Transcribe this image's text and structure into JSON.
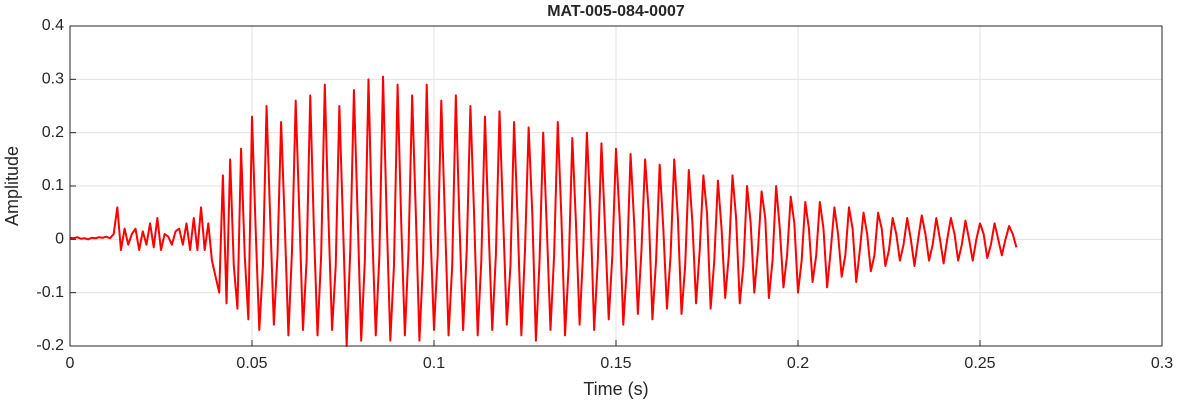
{
  "chart_data": {
    "type": "line",
    "title": "MAT-005-084-0007",
    "xlabel": "Time (s)",
    "ylabel": "Amplitude",
    "xlim": [
      0,
      0.3
    ],
    "xticks": [
      0,
      0.05,
      0.1,
      0.15,
      0.2,
      0.25,
      0.3
    ],
    "ylim": [
      -0.2,
      0.4
    ],
    "yticks": [
      -0.2,
      -0.1,
      0,
      0.1,
      0.2,
      0.3,
      0.4
    ],
    "grid": true,
    "x": [
      0,
      0.001,
      0.002,
      0.003,
      0.004,
      0.005,
      0.006,
      0.007,
      0.008,
      0.009,
      0.01,
      0.011,
      0.012,
      0.013,
      0.014,
      0.015,
      0.016,
      0.017,
      0.018,
      0.019,
      0.02,
      0.021,
      0.022,
      0.023,
      0.024,
      0.025,
      0.026,
      0.027,
      0.028,
      0.029,
      0.03,
      0.031,
      0.032,
      0.033,
      0.034,
      0.035,
      0.036,
      0.037,
      0.038,
      0.039,
      0.04,
      0.041,
      0.042,
      0.043,
      0.044,
      0.045,
      0.046,
      0.047,
      0.048,
      0.049,
      0.05,
      0.051,
      0.052,
      0.053,
      0.054,
      0.055,
      0.056,
      0.057,
      0.058,
      0.059,
      0.06,
      0.061,
      0.062,
      0.063,
      0.064,
      0.065,
      0.066,
      0.067,
      0.068,
      0.069,
      0.07,
      0.071,
      0.072,
      0.073,
      0.074,
      0.075,
      0.076,
      0.077,
      0.078,
      0.079,
      0.08,
      0.081,
      0.082,
      0.083,
      0.084,
      0.085,
      0.086,
      0.087,
      0.088,
      0.089,
      0.09,
      0.091,
      0.092,
      0.093,
      0.094,
      0.095,
      0.096,
      0.097,
      0.098,
      0.099,
      0.1,
      0.101,
      0.102,
      0.103,
      0.104,
      0.105,
      0.106,
      0.107,
      0.108,
      0.109,
      0.11,
      0.111,
      0.112,
      0.113,
      0.114,
      0.115,
      0.116,
      0.117,
      0.118,
      0.119,
      0.12,
      0.121,
      0.122,
      0.123,
      0.124,
      0.125,
      0.126,
      0.127,
      0.128,
      0.129,
      0.13,
      0.131,
      0.132,
      0.133,
      0.134,
      0.135,
      0.136,
      0.137,
      0.138,
      0.139,
      0.14,
      0.141,
      0.142,
      0.143,
      0.144,
      0.145,
      0.146,
      0.147,
      0.148,
      0.149,
      0.15,
      0.151,
      0.152,
      0.153,
      0.154,
      0.155,
      0.156,
      0.157,
      0.158,
      0.159,
      0.16,
      0.161,
      0.162,
      0.163,
      0.164,
      0.165,
      0.166,
      0.167,
      0.168,
      0.169,
      0.17,
      0.171,
      0.172,
      0.173,
      0.174,
      0.175,
      0.176,
      0.177,
      0.178,
      0.179,
      0.18,
      0.181,
      0.182,
      0.183,
      0.184,
      0.185,
      0.186,
      0.187,
      0.188,
      0.189,
      0.19,
      0.191,
      0.192,
      0.193,
      0.194,
      0.195,
      0.196,
      0.197,
      0.198,
      0.199,
      0.2,
      0.201,
      0.202,
      0.203,
      0.204,
      0.205,
      0.206,
      0.207,
      0.208,
      0.209,
      0.21,
      0.211,
      0.212,
      0.213,
      0.214,
      0.215,
      0.216,
      0.217,
      0.218,
      0.219,
      0.22,
      0.221,
      0.222,
      0.223,
      0.224,
      0.225,
      0.226,
      0.227,
      0.228,
      0.229,
      0.23,
      0.231,
      0.232,
      0.233,
      0.234,
      0.235,
      0.236,
      0.237,
      0.238,
      0.239,
      0.24,
      0.241,
      0.242,
      0.243,
      0.244,
      0.245,
      0.246,
      0.247,
      0.248,
      0.249,
      0.25,
      0.251,
      0.252,
      0.253,
      0.254,
      0.255,
      0.256,
      0.257,
      0.258,
      0.259,
      0.26
    ],
    "series": [
      {
        "color": "#ff0000",
        "values": [
          0.003,
          0.002,
          0.004,
          0.001,
          0.002,
          0,
          0.003,
          0.002,
          0.004,
          0.003,
          0.005,
          0.002,
          0.01,
          0.06,
          -0.02,
          0.02,
          -0.01,
          0.01,
          0.02,
          -0.02,
          0.015,
          -0.01,
          0.03,
          -0.015,
          0.04,
          -0.02,
          0.01,
          0.005,
          -0.01,
          0.015,
          0.02,
          -0.01,
          0.03,
          -0.02,
          0.04,
          -0.02,
          0.06,
          -0.02,
          0.03,
          -0.04,
          -0.07,
          -0.1,
          0.12,
          -0.12,
          0.15,
          -0.05,
          -0.13,
          0.17,
          -0.03,
          -0.15,
          0.23,
          0.02,
          -0.17,
          -0.05,
          0.25,
          0.04,
          -0.16,
          -0.03,
          0.22,
          0.03,
          -0.18,
          -0.02,
          0.26,
          0.05,
          -0.17,
          -0.04,
          0.27,
          0.02,
          -0.18,
          -0.03,
          0.29,
          0.04,
          -0.17,
          -0.05,
          0.25,
          0.03,
          -0.2,
          -0.02,
          0.28,
          0.05,
          -0.19,
          -0.04,
          0.3,
          0.02,
          -0.18,
          -0.03,
          0.305,
          0.04,
          -0.19,
          -0.05,
          0.29,
          0.03,
          -0.18,
          -0.02,
          0.27,
          0.05,
          -0.19,
          -0.04,
          0.29,
          0.02,
          -0.17,
          -0.03,
          0.26,
          0.04,
          -0.18,
          -0.05,
          0.27,
          0.03,
          -0.17,
          -0.02,
          0.25,
          0.05,
          -0.18,
          -0.04,
          0.23,
          0.02,
          -0.17,
          -0.03,
          0.24,
          0.04,
          -0.16,
          -0.05,
          0.22,
          0.03,
          -0.18,
          -0.02,
          0.21,
          0.05,
          -0.19,
          -0.04,
          0.2,
          0.02,
          -0.17,
          -0.03,
          0.22,
          0.04,
          -0.18,
          -0.05,
          0.19,
          0.03,
          -0.16,
          -0.02,
          0.2,
          0.05,
          -0.17,
          -0.04,
          0.18,
          0.02,
          -0.15,
          -0.03,
          0.17,
          0.04,
          -0.16,
          -0.05,
          0.16,
          0.03,
          -0.14,
          -0.02,
          0.15,
          0.05,
          -0.15,
          -0.04,
          0.14,
          0.02,
          -0.13,
          -0.03,
          0.15,
          0.04,
          -0.14,
          -0.05,
          0.13,
          0.03,
          -0.12,
          -0.02,
          0.12,
          0.05,
          -0.13,
          -0.04,
          0.11,
          0.02,
          -0.11,
          -0.03,
          0.12,
          0.04,
          -0.12,
          -0.05,
          0.1,
          0.03,
          -0.1,
          -0.02,
          0.09,
          0.04,
          -0.11,
          -0.04,
          0.1,
          0.02,
          -0.09,
          -0.03,
          0.08,
          0.03,
          -0.1,
          -0.04,
          0.07,
          0.02,
          -0.08,
          -0.03,
          0.07,
          0.02,
          -0.09,
          -0.02,
          0.06,
          0.01,
          -0.07,
          -0.03,
          0.06,
          0.02,
          -0.08,
          -0.02,
          0.05,
          0.01,
          -0.06,
          -0.03,
          0.05,
          0.02,
          -0.05,
          -0.02,
          0.04,
          0.01,
          -0.04,
          -0.01,
          0.04,
          0,
          -0.05,
          0,
          0.045,
          0.01,
          -0.04,
          -0.01,
          0.04,
          0,
          -0.045,
          0,
          0.04,
          0.01,
          -0.04,
          -0.01,
          0.035,
          0,
          -0.04,
          0,
          0.03,
          0.01,
          -0.035,
          -0.01,
          0.03,
          0,
          -0.03,
          0,
          0.025,
          0.01,
          -0.015
        ]
      }
    ]
  }
}
